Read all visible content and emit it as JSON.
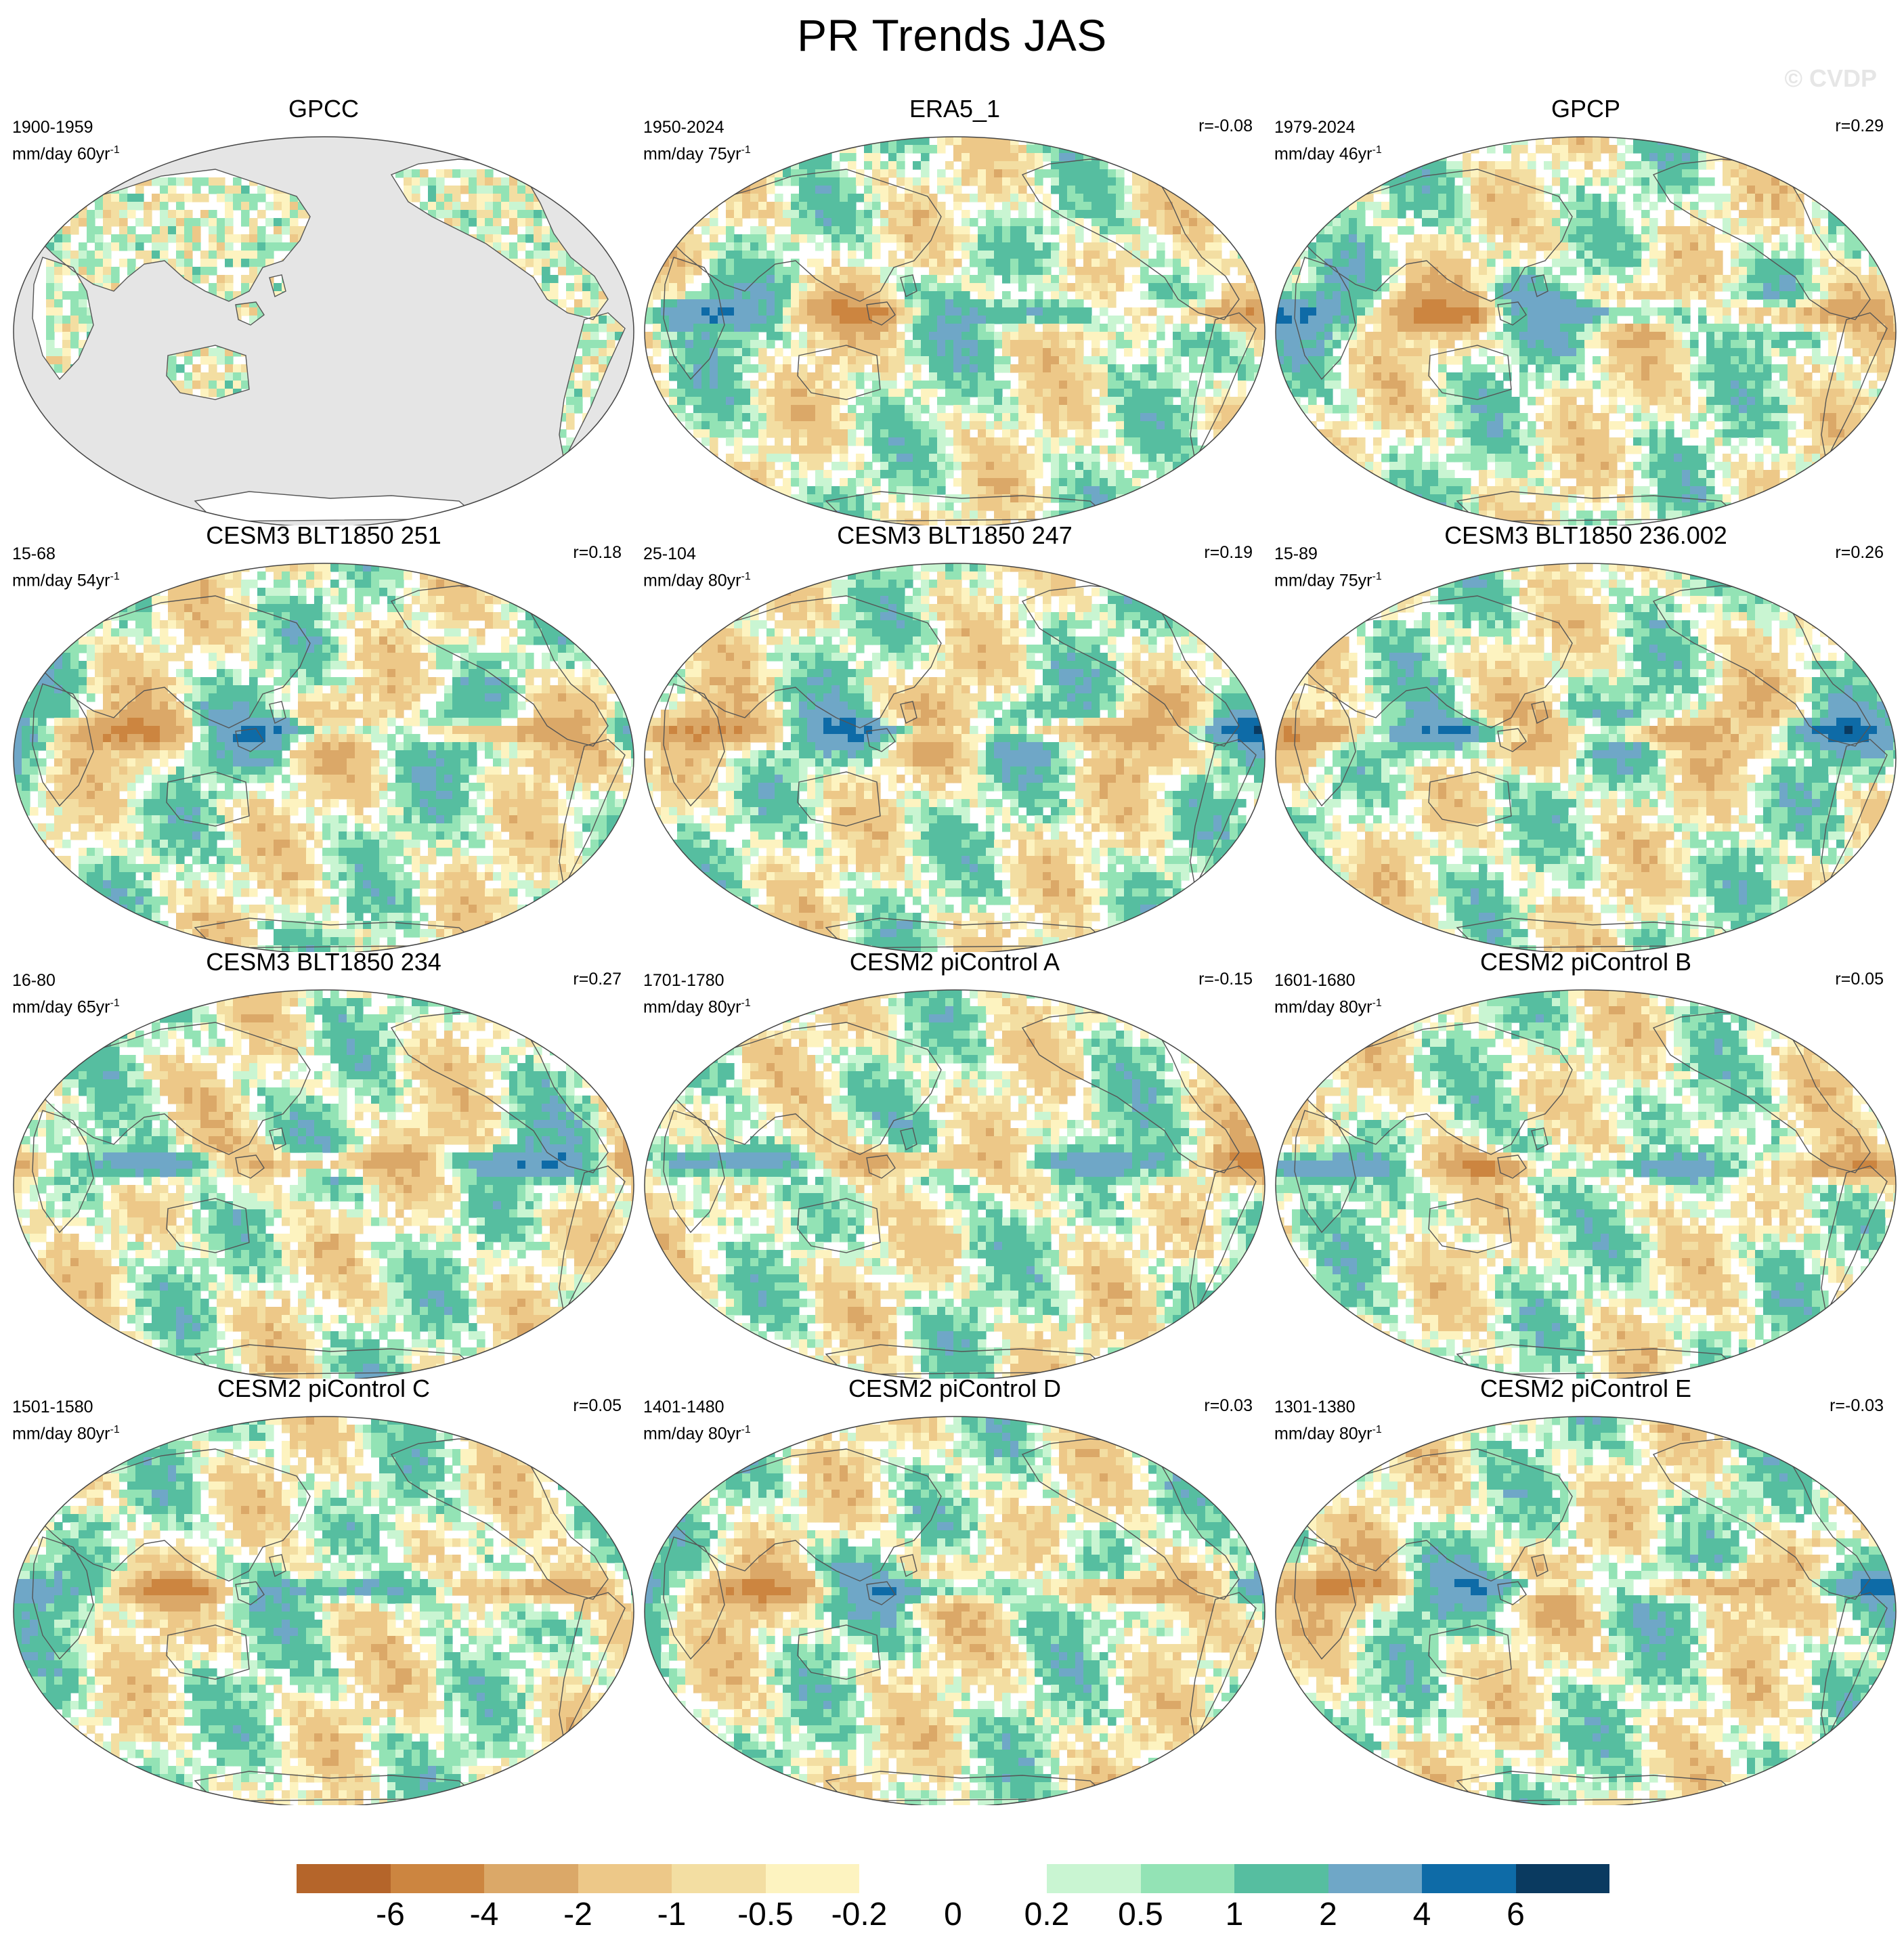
{
  "title": "PR Trends JAS",
  "watermark": "© CVDP",
  "units_text": "mm/day",
  "panels": [
    {
      "title": "GPCC",
      "period": "1900-1959",
      "trend_years": "60yr",
      "r": "",
      "masked": true
    },
    {
      "title": "ERA5_1",
      "period": "1950-2024",
      "trend_years": "75yr",
      "r": "r=-0.08",
      "masked": false
    },
    {
      "title": "GPCP",
      "period": "1979-2024",
      "trend_years": "46yr",
      "r": "r=0.29",
      "masked": false
    },
    {
      "title": "CESM3 BLT1850 251",
      "period": "15-68",
      "trend_years": "54yr",
      "r": "r=0.18",
      "masked": false
    },
    {
      "title": "CESM3 BLT1850 247",
      "period": "25-104",
      "trend_years": "80yr",
      "r": "r=0.19",
      "masked": false
    },
    {
      "title": "CESM3 BLT1850 236.002",
      "period": "15-89",
      "trend_years": "75yr",
      "r": "r=0.26",
      "masked": false
    },
    {
      "title": "CESM3 BLT1850 234",
      "period": "16-80",
      "trend_years": "65yr",
      "r": "r=0.27",
      "masked": false
    },
    {
      "title": "CESM2 piControl A",
      "period": "1701-1780",
      "trend_years": "80yr",
      "r": "r=-0.15",
      "masked": false
    },
    {
      "title": "CESM2 piControl B",
      "period": "1601-1680",
      "trend_years": "80yr",
      "r": "r=0.05",
      "masked": false
    },
    {
      "title": "CESM2 piControl C",
      "period": "1501-1580",
      "trend_years": "80yr",
      "r": "r=0.05",
      "masked": false
    },
    {
      "title": "CESM2 piControl D",
      "period": "1401-1480",
      "trend_years": "80yr",
      "r": "r=0.03",
      "masked": false
    },
    {
      "title": "CESM2 piControl E",
      "period": "1301-1380",
      "trend_years": "80yr",
      "r": "r=-0.03",
      "masked": false
    }
  ],
  "colorbar": {
    "ticks": [
      "-6",
      "-4",
      "-2",
      "-1",
      "-0.5",
      "-0.2",
      "0",
      "0.2",
      "0.5",
      "1",
      "2",
      "4",
      "6"
    ],
    "colors": [
      "#b5652a",
      "#cc8540",
      "#dba868",
      "#edc888",
      "#f3dea2",
      "#fdf3c0",
      "#ffffff",
      "#ffffff",
      "#c9f5d2",
      "#93e3b5",
      "#56bea0",
      "#6fa7c7",
      "#0e6ba7",
      "#0a3a60"
    ]
  },
  "chart_data": {
    "type": "map",
    "title": "PR Trends JAS",
    "projection": "Robinson, Pacific-centered",
    "variable": "precipitation trend",
    "units": "mm/day per trend period",
    "contour_levels": [
      -6,
      -4,
      -2,
      -1,
      -0.5,
      -0.2,
      0,
      0.2,
      0.5,
      1,
      2,
      4,
      6
    ],
    "pattern_correlations": {
      "ERA5_1": -0.08,
      "GPCP": 0.29,
      "CESM3 BLT1850 251": 0.18,
      "CESM3 BLT1850 247": 0.19,
      "CESM3 BLT1850 236.002": 0.26,
      "CESM3 BLT1850 234": 0.27,
      "CESM2 piControl A": -0.15,
      "CESM2 piControl B": 0.05,
      "CESM2 piControl C": 0.05,
      "CESM2 piControl D": 0.03,
      "CESM2 piControl E": -0.03
    }
  }
}
